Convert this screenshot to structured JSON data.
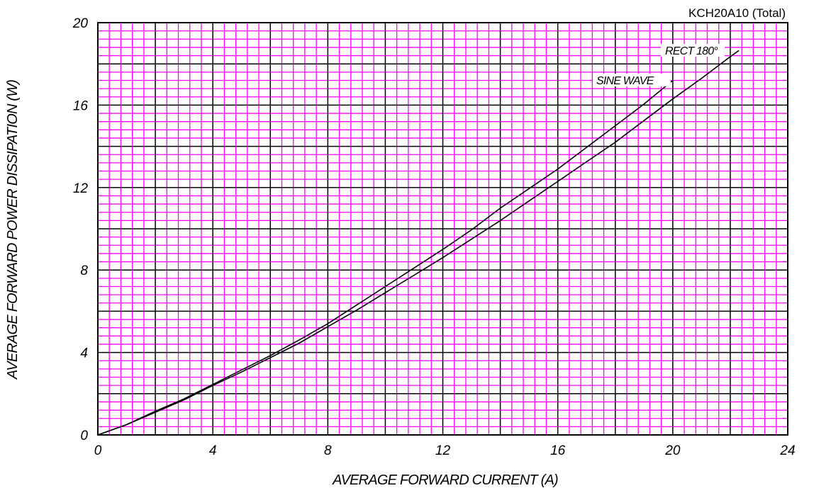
{
  "chart_data": {
    "type": "line",
    "title": "KCH20A10 (Total)",
    "xlabel": "AVERAGE FORWARD CURRENT (A)",
    "ylabel": "AVERAGE FORWARD POWER DISSIPATION (W)",
    "xlim": [
      0,
      24
    ],
    "ylim": [
      0,
      20
    ],
    "xticks": [
      "0",
      "4",
      "8",
      "12",
      "16",
      "20",
      "24"
    ],
    "yticks": [
      "0",
      "4",
      "8",
      "12",
      "16",
      "20"
    ],
    "grid": true,
    "colors": {
      "grid_minor": "#ff00ff",
      "grid_major": "#000000",
      "background": "#ffffff",
      "line": "#000000"
    },
    "series": [
      {
        "name": "SINE WAVE",
        "x": [
          0,
          1,
          2,
          3,
          4,
          5,
          6,
          7,
          8,
          9,
          10,
          11,
          12,
          13,
          14,
          15,
          16,
          17,
          18,
          19,
          20
        ],
        "y": [
          0,
          0.5,
          1.15,
          1.75,
          2.45,
          3.15,
          3.85,
          4.6,
          5.4,
          6.3,
          7.2,
          8.1,
          9.0,
          9.95,
          11.0,
          11.95,
          12.9,
          13.95,
          15.0,
          16.05,
          17.2
        ]
      },
      {
        "name": "RECT 180°",
        "x": [
          0,
          1,
          2,
          3,
          4,
          5,
          6,
          7,
          8,
          9,
          10,
          11,
          12,
          13,
          14,
          15,
          16,
          17,
          18,
          19,
          20,
          21,
          22,
          22.3
        ],
        "y": [
          0,
          0.5,
          1.1,
          1.7,
          2.4,
          3.05,
          3.75,
          4.45,
          5.25,
          6.05,
          6.9,
          7.75,
          8.6,
          9.5,
          10.4,
          11.35,
          12.3,
          13.25,
          14.2,
          15.25,
          16.3,
          17.3,
          18.35,
          18.65
        ]
      }
    ]
  }
}
